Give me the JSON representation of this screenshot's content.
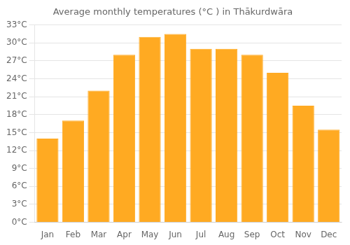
{
  "chart_data": {
    "type": "bar",
    "title": "Average monthly temperatures (°C ) in Thākurdwāra",
    "categories": [
      "Jan",
      "Feb",
      "Mar",
      "Apr",
      "May",
      "Jun",
      "Jul",
      "Aug",
      "Sep",
      "Oct",
      "Nov",
      "Dec"
    ],
    "values": [
      14,
      17,
      22,
      28,
      31,
      31.5,
      29,
      29,
      28,
      25,
      19.5,
      15.5
    ],
    "color": "#FFAA22",
    "ylim": [
      0,
      33
    ],
    "yticks": [
      {
        "value": 0,
        "label": "0°C"
      },
      {
        "value": 3,
        "label": "3°C"
      },
      {
        "value": 6,
        "label": "6°C"
      },
      {
        "value": 9,
        "label": "9°C"
      },
      {
        "value": 12,
        "label": "12°C"
      },
      {
        "value": 15,
        "label": "15°C"
      },
      {
        "value": 18,
        "label": "18°C"
      },
      {
        "value": 21,
        "label": "21°C"
      },
      {
        "value": 24,
        "label": "24°C"
      },
      {
        "value": 27,
        "label": "27°C"
      },
      {
        "value": 30,
        "label": "30°C"
      },
      {
        "value": 33,
        "label": "33°C"
      }
    ],
    "grid": true
  }
}
